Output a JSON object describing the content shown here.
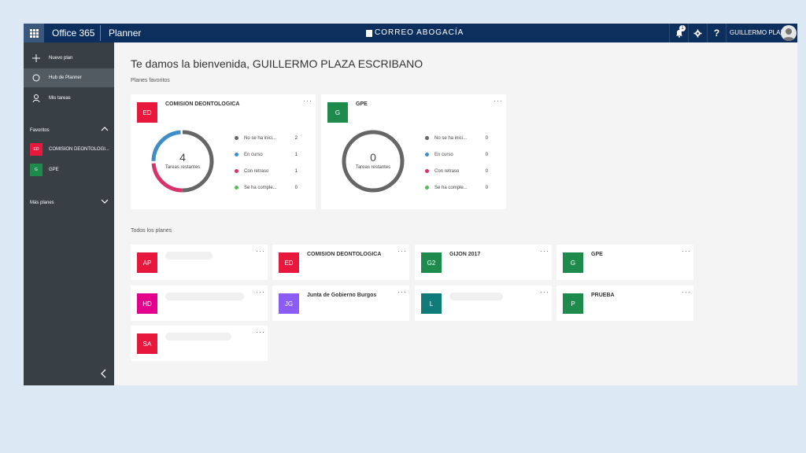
{
  "topbar": {
    "app_name": "Office 365",
    "product_name": "Planner",
    "brand": "CORREO ABOGACÍA",
    "notification_count": "1",
    "help": "?",
    "user_name": "GUILLERMO PLAZ..."
  },
  "sidebar": {
    "nav": [
      {
        "label": "Nuevo plan",
        "icon": "plus-icon"
      },
      {
        "label": "Hub de Planner",
        "icon": "circle-icon"
      },
      {
        "label": "Mis tareas",
        "icon": "person-icon"
      }
    ],
    "favorites_title": "Favoritos",
    "favorites": [
      {
        "initials": "ED",
        "label": "COMISION DEONTOLOGI...",
        "color": "#e8173c"
      },
      {
        "initials": "G",
        "label": "GPE",
        "color": "#1e8a4c"
      }
    ],
    "more_plans_title": "Más planes"
  },
  "main": {
    "welcome": "Te damos la bienvenida, GUILLERMO PLAZA ESCRIBANO",
    "favorites_title": "Planes favoritos",
    "all_plans_title": "Todos los planes"
  },
  "favorite_cards": [
    {
      "initials": "ED",
      "title": "COMISION DEONTOLOGICA",
      "color": "#e8173c",
      "remaining_count": "4",
      "remaining_label": "Tareas restantes",
      "statuses": [
        {
          "label": "No se ha inici...",
          "value": "2",
          "color": "#666666"
        },
        {
          "label": "En curso",
          "value": "1",
          "color": "#3d8ec8"
        },
        {
          "label": "Con retraso",
          "value": "1",
          "color": "#d6336c"
        },
        {
          "label": "Se ha comple...",
          "value": "0",
          "color": "#5cb85c"
        }
      ]
    },
    {
      "initials": "G",
      "title": "GPE",
      "color": "#1e8a4c",
      "remaining_count": "0",
      "remaining_label": "Tareas restantes",
      "statuses": [
        {
          "label": "No se ha inici...",
          "value": "0",
          "color": "#666666"
        },
        {
          "label": "En curso",
          "value": "0",
          "color": "#3d8ec8"
        },
        {
          "label": "Con retraso",
          "value": "0",
          "color": "#d6336c"
        },
        {
          "label": "Se ha comple...",
          "value": "0",
          "color": "#5cb85c"
        }
      ]
    }
  ],
  "plans": [
    {
      "initials": "AP",
      "title": "",
      "color": "#e8173c"
    },
    {
      "initials": "ED",
      "title": "COMISION DEONTOLOGICA",
      "color": "#e8173c"
    },
    {
      "initials": "G2",
      "title": "GIJON 2017",
      "color": "#1e8a4c"
    },
    {
      "initials": "G",
      "title": "GPE",
      "color": "#1e8a4c"
    },
    {
      "initials": "HD",
      "title": "",
      "color": "#e3008c"
    },
    {
      "initials": "JG",
      "title": "Junta de Gobierno Burgos",
      "color": "#8b5cf6"
    },
    {
      "initials": "L",
      "title": "",
      "color": "#0f7b7b"
    },
    {
      "initials": "P",
      "title": "PRUEBA",
      "color": "#1e8a4c"
    },
    {
      "initials": "SA",
      "title": "",
      "color": "#e8173c"
    }
  ]
}
